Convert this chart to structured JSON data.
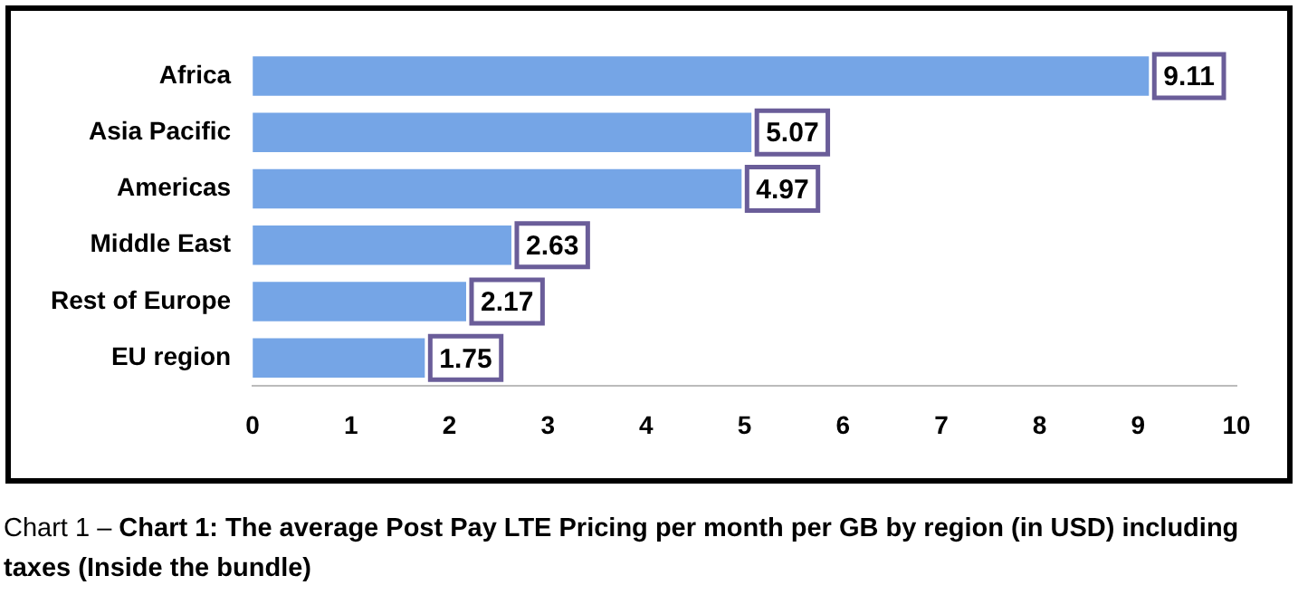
{
  "chart_data": {
    "type": "bar",
    "orientation": "horizontal",
    "title": "Chart 1: The average Post Pay LTE Pricing per month per GB by region (in USD) including taxes (Inside the bundle)",
    "annotations": [
      "Chart 1 –"
    ],
    "categories": [
      "Africa",
      "Asia Pacific",
      "Americas",
      "Middle East",
      "Rest of Europe",
      "EU region"
    ],
    "values": [
      9.11,
      5.07,
      4.97,
      2.63,
      2.17,
      1.75
    ],
    "color": "#75a5e6",
    "xlim": [
      0,
      10
    ],
    "xticks": [
      0,
      1,
      2,
      3,
      4,
      5,
      6,
      7,
      8,
      9,
      10
    ],
    "grid": false,
    "legend": false,
    "data_labels": true
  }
}
